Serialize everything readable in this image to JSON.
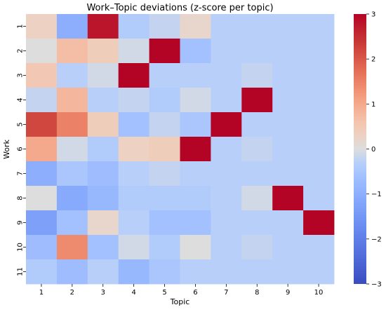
{
  "chart_data": {
    "type": "heatmap",
    "title": "Work–Topic deviations (z-score per topic)",
    "xlabel": "Topic",
    "ylabel": "Work",
    "x_categories": [
      "1",
      "2",
      "3",
      "4",
      "5",
      "6",
      "7",
      "8",
      "9",
      "10"
    ],
    "y_categories": [
      "1",
      "2",
      "3",
      "4",
      "5",
      "6",
      "7",
      "8",
      "9",
      "10",
      "11"
    ],
    "values": [
      [
        0.3,
        -1.0,
        2.8,
        -0.4,
        -0.2,
        0.2,
        -0.3,
        -0.3,
        -0.3,
        -0.3
      ],
      [
        0.0,
        0.7,
        0.4,
        -0.1,
        3.0,
        -0.6,
        -0.3,
        -0.3,
        -0.3,
        -0.3
      ],
      [
        0.5,
        -0.3,
        -0.1,
        3.0,
        -0.3,
        -0.3,
        -0.3,
        -0.2,
        -0.3,
        -0.3
      ],
      [
        -0.2,
        0.8,
        -0.3,
        -0.2,
        -0.4,
        -0.1,
        -0.3,
        3.0,
        -0.3,
        -0.3
      ],
      [
        2.2,
        1.5,
        0.4,
        -0.6,
        -0.2,
        -0.5,
        3.0,
        -0.3,
        -0.3,
        -0.3
      ],
      [
        1.0,
        -0.1,
        -0.4,
        0.3,
        0.4,
        3.0,
        -0.3,
        -0.2,
        -0.3,
        -0.3
      ],
      [
        -1.0,
        -0.5,
        -0.7,
        -0.3,
        -0.2,
        -0.3,
        -0.3,
        -0.3,
        -0.3,
        -0.3
      ],
      [
        0.0,
        -1.1,
        -0.8,
        -0.4,
        -0.4,
        -0.4,
        -0.3,
        -0.1,
        3.0,
        -0.3
      ],
      [
        -1.3,
        -0.6,
        0.2,
        -0.3,
        -0.6,
        -0.6,
        -0.3,
        -0.3,
        -0.3,
        3.0
      ],
      [
        -0.7,
        1.4,
        -0.6,
        -0.1,
        -0.4,
        0.0,
        -0.3,
        -0.2,
        -0.3,
        -0.3
      ],
      [
        -0.4,
        -0.7,
        -0.3,
        -0.8,
        -0.5,
        -0.3,
        -0.3,
        -0.3,
        -0.3,
        -0.3
      ]
    ],
    "colorbar": {
      "vmin": -3,
      "vmax": 3,
      "ticks": [
        -3,
        -2,
        -1,
        0,
        1,
        2,
        3
      ],
      "colormap": "coolwarm"
    }
  }
}
